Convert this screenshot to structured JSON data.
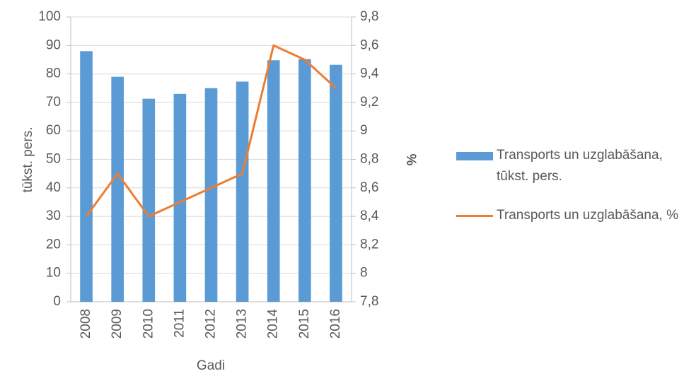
{
  "chart_data": {
    "type": "bar_line",
    "xlabel": "Gadi",
    "ylabel": "tūkst. pers.",
    "y2label": "%",
    "categories": [
      "2008",
      "2009",
      "2010",
      "2011",
      "2012",
      "2013",
      "2014",
      "2015",
      "2016"
    ],
    "series": [
      {
        "name": "Transports un uzglabāšana, tūkst. pers.",
        "type": "bar",
        "color": "#5b9bd5",
        "values": [
          88,
          79,
          71.3,
          73,
          75,
          77.3,
          84.8,
          85.2,
          83.2
        ]
      },
      {
        "name": "Transports un uzglabāšana, %",
        "type": "line",
        "axis": "y2",
        "color": "#ed7d31",
        "values": [
          8.4,
          8.7,
          8.4,
          8.5,
          8.6,
          8.7,
          9.6,
          9.5,
          9.3
        ]
      }
    ],
    "ylim": [
      0,
      100
    ],
    "yticks": [
      0,
      10,
      20,
      30,
      40,
      50,
      60,
      70,
      80,
      90,
      100
    ],
    "y2lim": [
      7.8,
      9.8
    ],
    "y2ticks": [
      {
        "value": 7.8,
        "label": "7,8"
      },
      8,
      {
        "value": 8.2,
        "label": "8,2"
      },
      {
        "value": 8.4,
        "label": "8,4"
      },
      {
        "value": 8.6,
        "label": "8,6"
      },
      {
        "value": 8.8,
        "label": "8,8"
      },
      9,
      {
        "value": 9.2,
        "label": "9,2"
      },
      {
        "value": 9.4,
        "label": "9,4"
      },
      {
        "value": 9.6,
        "label": "9,6"
      },
      {
        "value": 9.8,
        "label": "9,8"
      }
    ],
    "grid": true,
    "legend": "right"
  }
}
